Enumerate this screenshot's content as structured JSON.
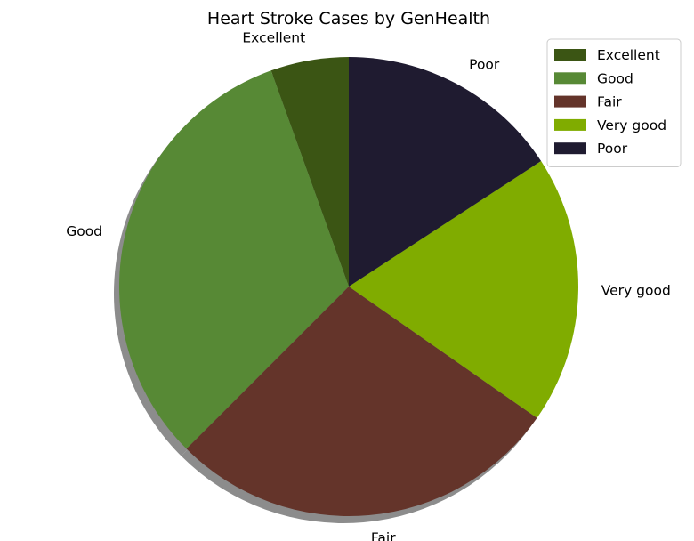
{
  "chart_data": {
    "type": "pie",
    "title": "Heart Stroke Cases by GenHealth",
    "shadow": true,
    "start_angle_deg": 90,
    "legend_placement": "upper-right",
    "slices": [
      {
        "label": "Excellent",
        "value": 5.5,
        "color": "#3b5514"
      },
      {
        "label": "Good",
        "value": 32.0,
        "color": "#578935"
      },
      {
        "label": "Fair",
        "value": 27.8,
        "color": "#64342a"
      },
      {
        "label": "Very good",
        "value": 18.9,
        "color": "#80ac00"
      },
      {
        "label": "Poor",
        "value": 15.8,
        "color": "#1f1b30"
      }
    ]
  }
}
